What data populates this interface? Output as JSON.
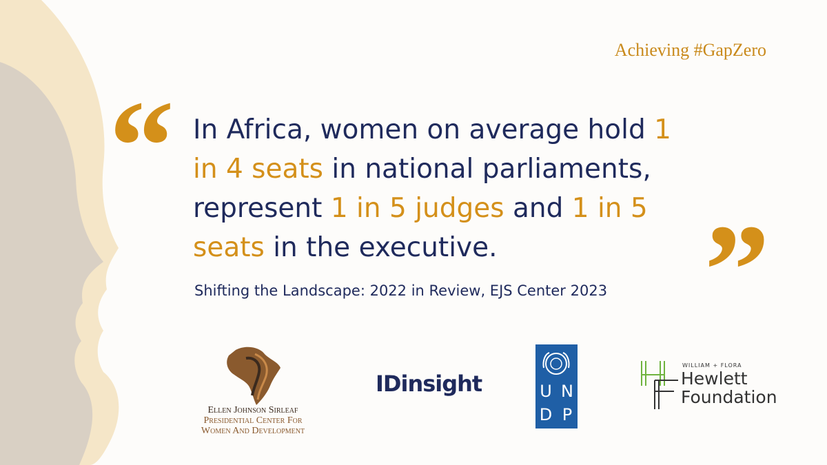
{
  "tagline": "Achieving #GapZero",
  "open_quote": "“",
  "close_quote": "”",
  "quote": {
    "lines": [
      [
        {
          "text": "In Africa, women on average hold ",
          "highlight": false
        },
        {
          "text": "1",
          "highlight": true
        }
      ],
      [
        {
          "text": "in 4 seats",
          "highlight": true
        },
        {
          "text": " in national parliaments,",
          "highlight": false
        }
      ],
      [
        {
          "text": "represent ",
          "highlight": false
        },
        {
          "text": "1 in 5 judges",
          "highlight": true
        },
        {
          "text": " and ",
          "highlight": false
        },
        {
          "text": "1 in 5",
          "highlight": true
        }
      ],
      [
        {
          "text": "seats",
          "highlight": true
        },
        {
          "text": " in the executive.",
          "highlight": false
        }
      ]
    ]
  },
  "source": "Shifting the Landscape: 2022 in Review, EJS Center 2023",
  "logos": {
    "ejs": [
      "Ellen Johnson Sirleaf",
      "Presidential Center For",
      "Women And Development"
    ],
    "idinsight": "IDinsight",
    "undp": [
      "U",
      "N",
      "D",
      "P"
    ],
    "hewlett": [
      "William + Flora",
      "Hewlett",
      "Foundation"
    ]
  }
}
